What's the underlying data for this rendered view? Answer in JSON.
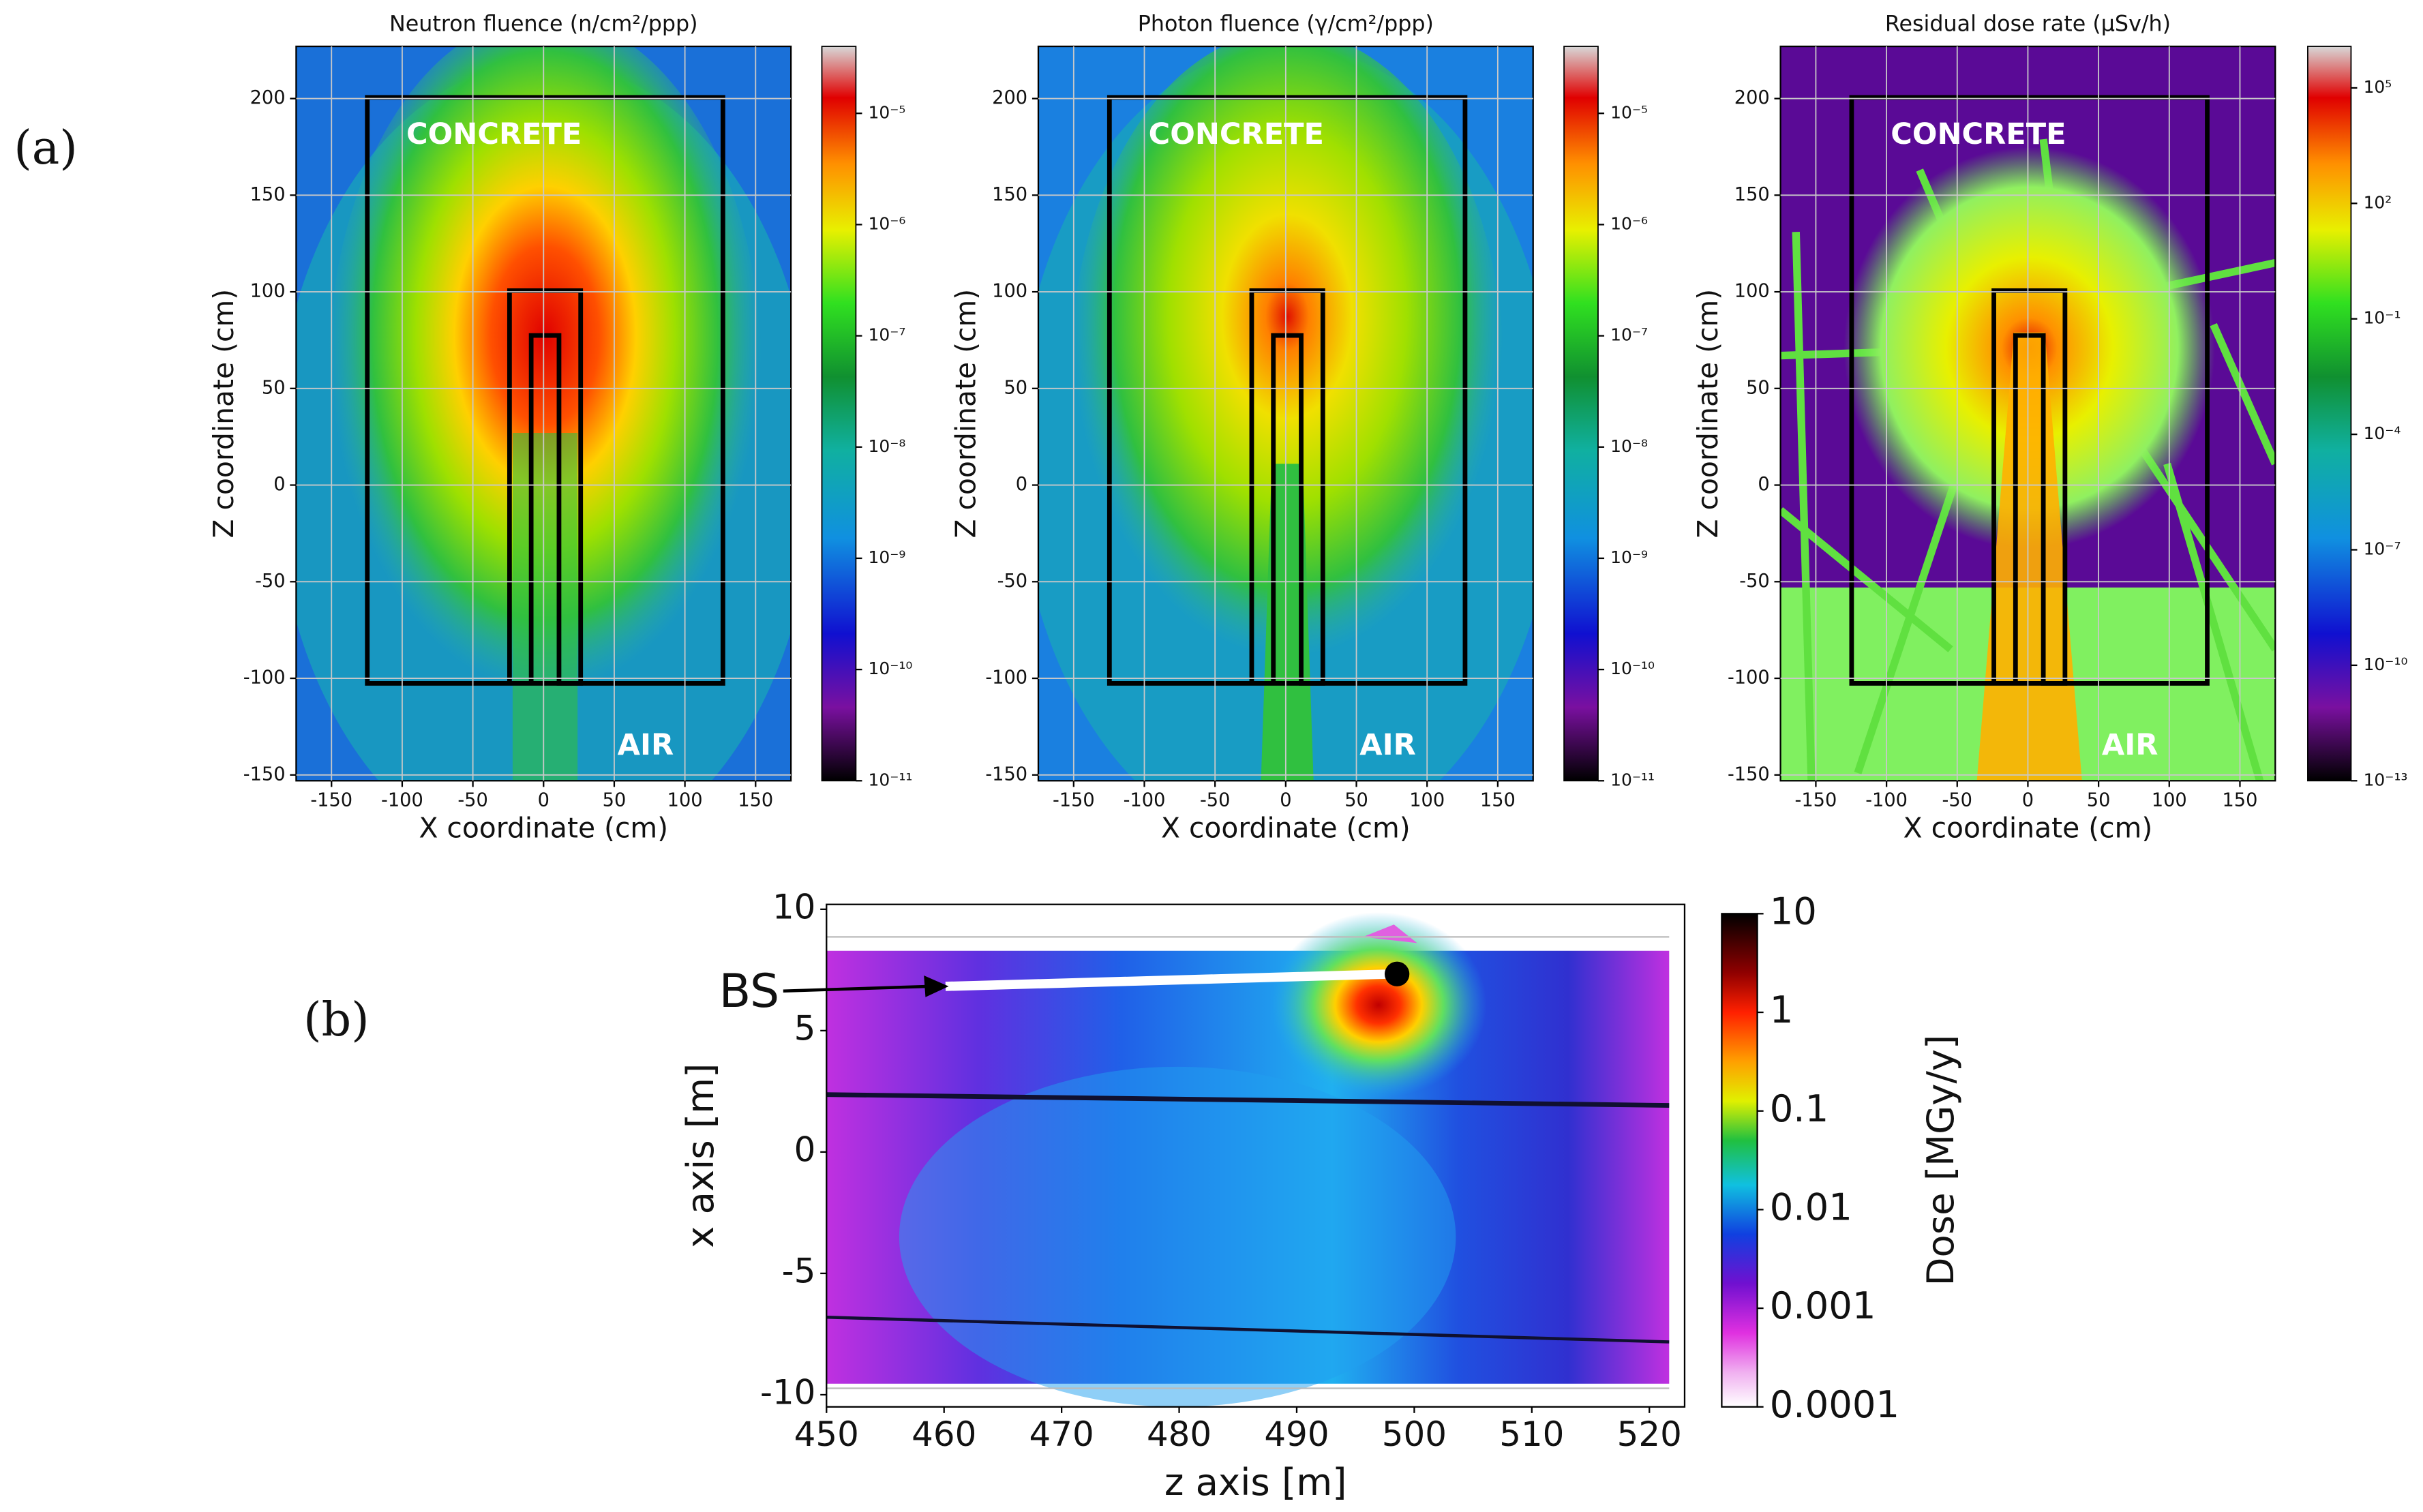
{
  "panel_labels": [
    "(a)",
    "(b)"
  ],
  "chart_data": [
    {
      "type": "heatmap",
      "title": "Neutron fluence (n/cm²/ppp)",
      "xlabel": "X coordinate (cm)",
      "ylabel": "Z coordinate (cm)",
      "xlim": [
        -175,
        175
      ],
      "xticks": [
        -150,
        -100,
        -50,
        0,
        50,
        100,
        150
      ],
      "ylim": [
        -153,
        227
      ],
      "yticks": [
        -150,
        -100,
        -50,
        0,
        50,
        100,
        150,
        200
      ],
      "grid": true,
      "annotations": [
        "CONCRETE",
        "AIR"
      ],
      "colorbar": {
        "scale": "log",
        "lim": [
          1e-11,
          4e-05
        ],
        "ticks": [
          {
            "value": 1e-05,
            "label": "10⁻⁵"
          },
          {
            "value": 1e-06,
            "label": "10⁻⁶"
          },
          {
            "value": 1e-07,
            "label": "10⁻⁷"
          },
          {
            "value": 1e-08,
            "label": "10⁻⁸"
          },
          {
            "value": 1e-09,
            "label": "10⁻⁹"
          },
          {
            "value": 1e-10,
            "label": "10⁻¹⁰"
          },
          {
            "value": 1e-11,
            "label": "10⁻¹¹"
          }
        ]
      }
    },
    {
      "type": "heatmap",
      "title": "Photon fluence (γ/cm²/ppp)",
      "xlabel": "X coordinate (cm)",
      "ylabel": "Z coordinate (cm)",
      "xlim": [
        -175,
        175
      ],
      "xticks": [
        -150,
        -100,
        -50,
        0,
        50,
        100,
        150
      ],
      "ylim": [
        -153,
        227
      ],
      "yticks": [
        -150,
        -100,
        -50,
        0,
        50,
        100,
        150,
        200
      ],
      "grid": true,
      "annotations": [
        "CONCRETE",
        "AIR"
      ],
      "colorbar": {
        "scale": "log",
        "lim": [
          1e-11,
          4e-05
        ],
        "ticks": [
          {
            "value": 1e-05,
            "label": "10⁻⁵"
          },
          {
            "value": 1e-06,
            "label": "10⁻⁶"
          },
          {
            "value": 1e-07,
            "label": "10⁻⁷"
          },
          {
            "value": 1e-08,
            "label": "10⁻⁸"
          },
          {
            "value": 1e-09,
            "label": "10⁻⁹"
          },
          {
            "value": 1e-10,
            "label": "10⁻¹⁰"
          },
          {
            "value": 1e-11,
            "label": "10⁻¹¹"
          }
        ]
      }
    },
    {
      "type": "heatmap",
      "title": "Residual dose rate (μSv/h)",
      "xlabel": "X coordinate (cm)",
      "ylabel": "Z coordinate (cm)",
      "xlim": [
        -175,
        175
      ],
      "xticks": [
        -150,
        -100,
        -50,
        0,
        50,
        100,
        150
      ],
      "ylim": [
        -153,
        227
      ],
      "yticks": [
        -150,
        -100,
        -50,
        0,
        50,
        100,
        150,
        200
      ],
      "grid": true,
      "annotations": [
        "CONCRETE",
        "AIR"
      ],
      "colorbar": {
        "scale": "log",
        "lim": [
          1e-13,
          1200000.0
        ],
        "ticks": [
          {
            "value": 100000,
            "label": "10⁵"
          },
          {
            "value": 100,
            "label": "10²"
          },
          {
            "value": 0.1,
            "label": "10⁻¹"
          },
          {
            "value": 0.0001,
            "label": "10⁻⁴"
          },
          {
            "value": 1e-07,
            "label": "10⁻⁷"
          },
          {
            "value": 1e-10,
            "label": "10⁻¹⁰"
          },
          {
            "value": 1e-13,
            "label": "10⁻¹³"
          }
        ]
      }
    },
    {
      "type": "heatmap",
      "xlabel": "z axis [m]",
      "ylabel": "x axis [m]",
      "xlim": [
        450,
        523
      ],
      "xticks": [
        450,
        460,
        470,
        480,
        490,
        500,
        510,
        520
      ],
      "ylim": [
        -10.5,
        10.2
      ],
      "yticks": [
        -10,
        -5,
        0,
        5,
        10
      ],
      "grid": false,
      "annotations": [
        "BS"
      ],
      "colorbar": {
        "scale": "log",
        "label": "Dose [MGy/y]",
        "lim": [
          0.0001,
          10
        ],
        "ticks": [
          10,
          1,
          0.1,
          0.01,
          0.001,
          0.0001
        ]
      }
    }
  ]
}
